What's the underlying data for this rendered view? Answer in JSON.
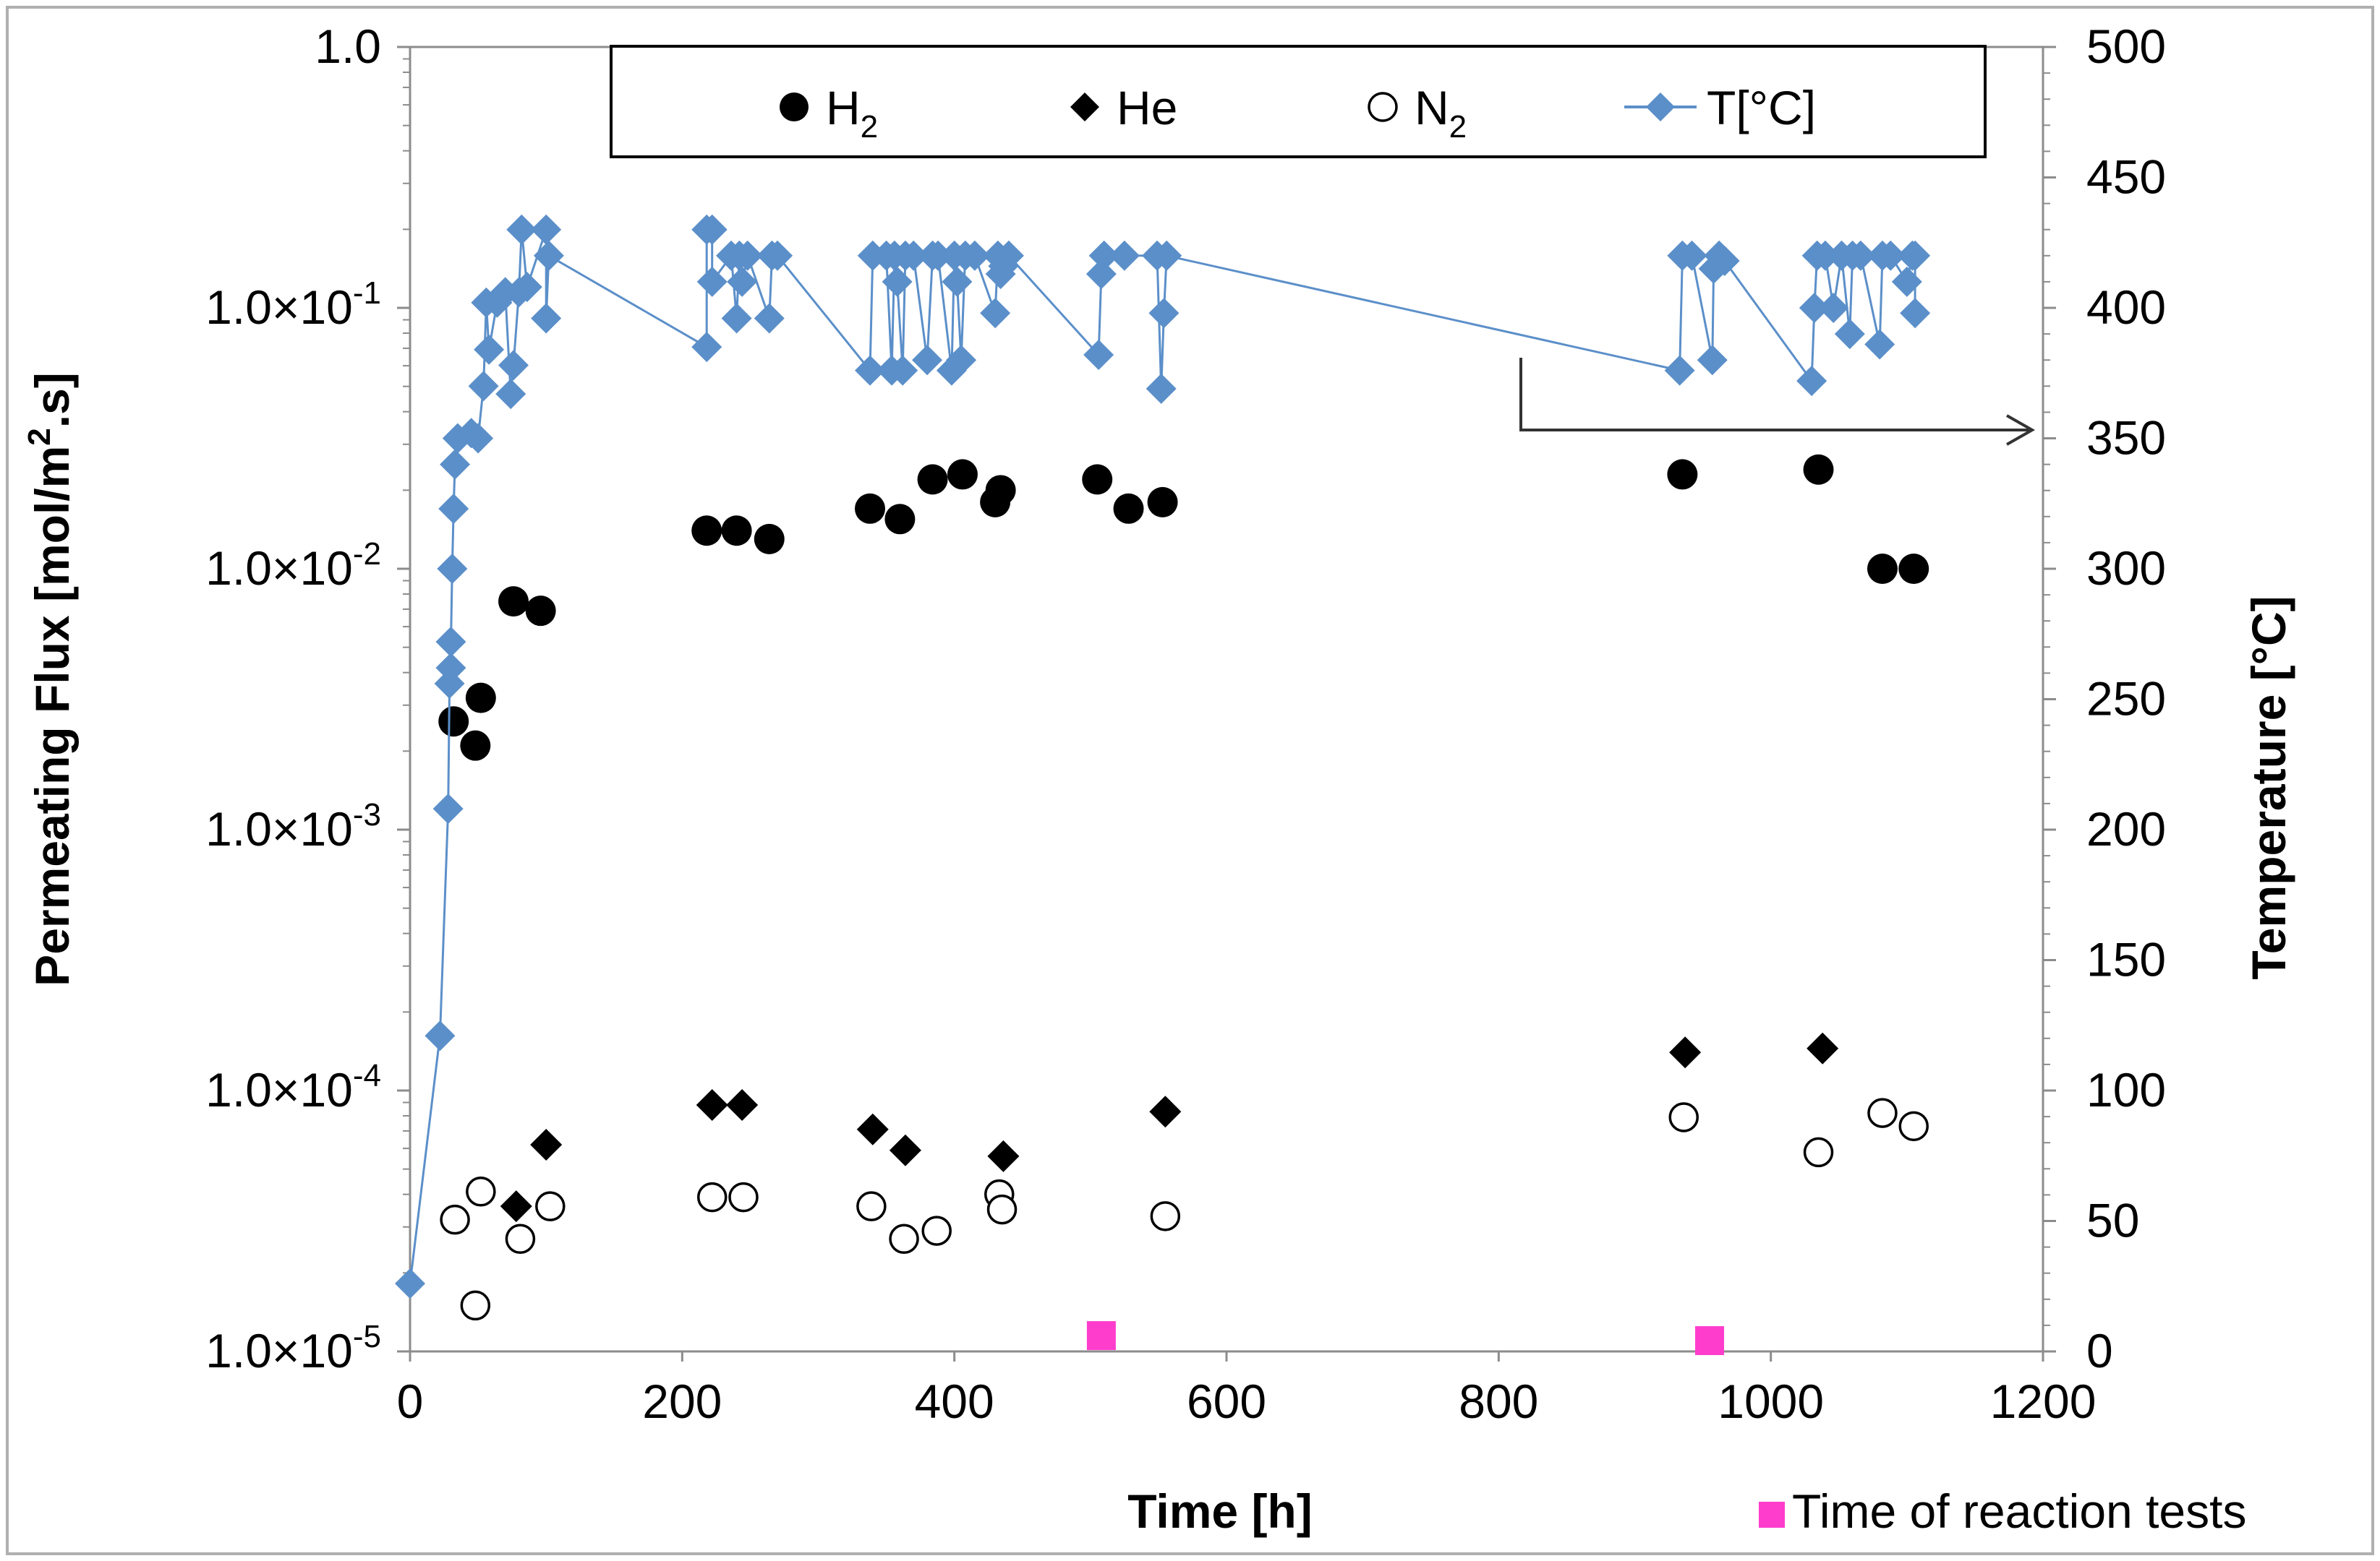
{
  "chart_data": {
    "type": "scatter",
    "x_axis": {
      "label": "Time [h]",
      "range": [
        0,
        1200
      ],
      "ticks": [
        0,
        200,
        400,
        600,
        800,
        1000,
        1200
      ],
      "tick_labels": [
        "0",
        "200",
        "400",
        "600",
        "800",
        "1000",
        "1200"
      ]
    },
    "y_left_axis": {
      "label": "Permeating Flux [mol/m2.s]",
      "label_parts": [
        "Permeating Flux [mol/m",
        "2",
        ".s]"
      ],
      "scale": "log",
      "range": [
        1e-05,
        1.0
      ],
      "ticks": [
        1e-05,
        0.0001,
        0.001,
        0.01,
        0.1,
        1.0
      ],
      "tick_labels": [
        {
          "mantissa": "1.0",
          "base": "×10",
          "exponent": "-5"
        },
        {
          "mantissa": "1.0",
          "base": "×10",
          "exponent": "-4"
        },
        {
          "mantissa": "1.0",
          "base": "×10",
          "exponent": "-3"
        },
        {
          "mantissa": "1.0",
          "base": "×10",
          "exponent": "-2"
        },
        {
          "mantissa": "1.0",
          "base": "×10",
          "exponent": "-1"
        },
        {
          "mantissa": "1.0",
          "base": "",
          "exponent": ""
        }
      ]
    },
    "y_right_axis": {
      "label": "Temperature [°C]",
      "range": [
        0,
        500
      ],
      "ticks": [
        0,
        50,
        100,
        150,
        200,
        250,
        300,
        350,
        400,
        450,
        500
      ],
      "tick_labels": [
        "0",
        "50",
        "100",
        "150",
        "200",
        "250",
        "300",
        "350",
        "400",
        "450",
        "500"
      ]
    },
    "legend": {
      "position": "top",
      "entries": [
        {
          "name": "H",
          "sub": "2",
          "marker": "filled-circle"
        },
        {
          "name": "He",
          "sub": "",
          "marker": "filled-diamond"
        },
        {
          "name": "N",
          "sub": "2",
          "marker": "open-circle"
        },
        {
          "name": "T[°C]",
          "sub": "",
          "marker": "line-diamond"
        }
      ]
    },
    "annotation": {
      "text": "Time of reaction tests",
      "arrow": "points to right temperature axis"
    },
    "colors": {
      "temperature": "#5b8fc9",
      "reaction_marker": "#ff3dcc",
      "points": "#000000"
    },
    "series": [
      {
        "name": "H2",
        "axis": "left",
        "marker": "filled-circle",
        "points": [
          [
            32,
            0.0026
          ],
          [
            48,
            0.0021
          ],
          [
            52,
            0.0032
          ],
          [
            76,
            0.0075
          ],
          [
            96,
            0.0069
          ],
          [
            218,
            0.014
          ],
          [
            240,
            0.014
          ],
          [
            264,
            0.013
          ],
          [
            338,
            0.017
          ],
          [
            360,
            0.0155
          ],
          [
            384,
            0.022
          ],
          [
            406,
            0.023
          ],
          [
            430,
            0.018
          ],
          [
            434,
            0.02
          ],
          [
            505,
            0.022
          ],
          [
            528,
            0.017
          ],
          [
            553,
            0.018
          ],
          [
            935,
            0.023
          ],
          [
            1035,
            0.024
          ],
          [
            1082,
            0.01
          ],
          [
            1105,
            0.01
          ]
        ]
      },
      {
        "name": "He",
        "axis": "left",
        "marker": "filled-diamond",
        "points": [
          [
            78,
            3.6e-05
          ],
          [
            100,
            6.2e-05
          ],
          [
            222,
            8.8e-05
          ],
          [
            244,
            8.8e-05
          ],
          [
            340,
            7.1e-05
          ],
          [
            364,
            5.9e-05
          ],
          [
            436,
            5.6e-05
          ],
          [
            555,
            8.3e-05
          ],
          [
            937,
            0.00014
          ],
          [
            1038,
            0.000145
          ]
        ]
      },
      {
        "name": "N2",
        "axis": "left",
        "marker": "open-circle",
        "points": [
          [
            33,
            3.2e-05
          ],
          [
            48,
            1.5e-05
          ],
          [
            52,
            4.1e-05
          ],
          [
            81,
            2.7e-05
          ],
          [
            103,
            3.6e-05
          ],
          [
            222,
            3.9e-05
          ],
          [
            245,
            3.9e-05
          ],
          [
            339,
            3.6e-05
          ],
          [
            363,
            2.7e-05
          ],
          [
            387,
            2.9e-05
          ],
          [
            433,
            4e-05
          ],
          [
            435,
            3.5e-05
          ],
          [
            555,
            3.3e-05
          ],
          [
            936,
            7.9e-05
          ],
          [
            1035,
            5.8e-05
          ],
          [
            1082,
            8.2e-05
          ],
          [
            1105,
            7.3e-05
          ]
        ]
      },
      {
        "name": "T[°C]",
        "axis": "right",
        "marker": "line-diamond",
        "points": [
          [
            0,
            26
          ],
          [
            22,
            121
          ],
          [
            28,
            208
          ],
          [
            29,
            256
          ],
          [
            30,
            262
          ],
          [
            30,
            272
          ],
          [
            31,
            300
          ],
          [
            32,
            323
          ],
          [
            33,
            340
          ],
          [
            35,
            350
          ],
          [
            45,
            352
          ],
          [
            50,
            350
          ],
          [
            54,
            370
          ],
          [
            56,
            402
          ],
          [
            58,
            384
          ],
          [
            64,
            402
          ],
          [
            70,
            406
          ],
          [
            74,
            367
          ],
          [
            76,
            378
          ],
          [
            80,
            406
          ],
          [
            82,
            430
          ],
          [
            86,
            408
          ],
          [
            100,
            430
          ],
          [
            100,
            396
          ],
          [
            102,
            420
          ],
          [
            218,
            385
          ],
          [
            218,
            430
          ],
          [
            222,
            430
          ],
          [
            222,
            410
          ],
          [
            236,
            420
          ],
          [
            240,
            396
          ],
          [
            242,
            420
          ],
          [
            244,
            410
          ],
          [
            248,
            420
          ],
          [
            264,
            396
          ],
          [
            266,
            420
          ],
          [
            270,
            420
          ],
          [
            338,
            376
          ],
          [
            340,
            420
          ],
          [
            350,
            420
          ],
          [
            354,
            376
          ],
          [
            356,
            420
          ],
          [
            358,
            410
          ],
          [
            362,
            376
          ],
          [
            364,
            420
          ],
          [
            370,
            420
          ],
          [
            380,
            380
          ],
          [
            384,
            420
          ],
          [
            388,
            420
          ],
          [
            398,
            376
          ],
          [
            400,
            420
          ],
          [
            402,
            410
          ],
          [
            405,
            380
          ],
          [
            408,
            420
          ],
          [
            415,
            420
          ],
          [
            430,
            398
          ],
          [
            432,
            420
          ],
          [
            434,
            413
          ],
          [
            436,
            416
          ],
          [
            440,
            420
          ],
          [
            506,
            382
          ],
          [
            508,
            413
          ],
          [
            510,
            420
          ],
          [
            525,
            420
          ],
          [
            549,
            420
          ],
          [
            552,
            369
          ],
          [
            554,
            398
          ],
          [
            556,
            420
          ],
          [
            933,
            376
          ],
          [
            935,
            420
          ],
          [
            942,
            420
          ],
          [
            957,
            380
          ],
          [
            958,
            415
          ],
          [
            962,
            420
          ],
          [
            966,
            418
          ],
          [
            1030,
            372
          ],
          [
            1032,
            400
          ],
          [
            1034,
            420
          ],
          [
            1040,
            420
          ],
          [
            1046,
            400
          ],
          [
            1052,
            420
          ],
          [
            1058,
            390
          ],
          [
            1060,
            420
          ],
          [
            1066,
            420
          ],
          [
            1080,
            386
          ],
          [
            1082,
            420
          ],
          [
            1088,
            420
          ],
          [
            1100,
            410
          ],
          [
            1104,
            420
          ],
          [
            1106,
            420
          ],
          [
            1106,
            398
          ]
        ]
      },
      {
        "name": "Time of reaction tests",
        "axis": "left",
        "marker": "square",
        "points": [
          [
            508,
            1.15e-05
          ],
          [
            955,
            1.1e-05
          ]
        ]
      }
    ]
  }
}
